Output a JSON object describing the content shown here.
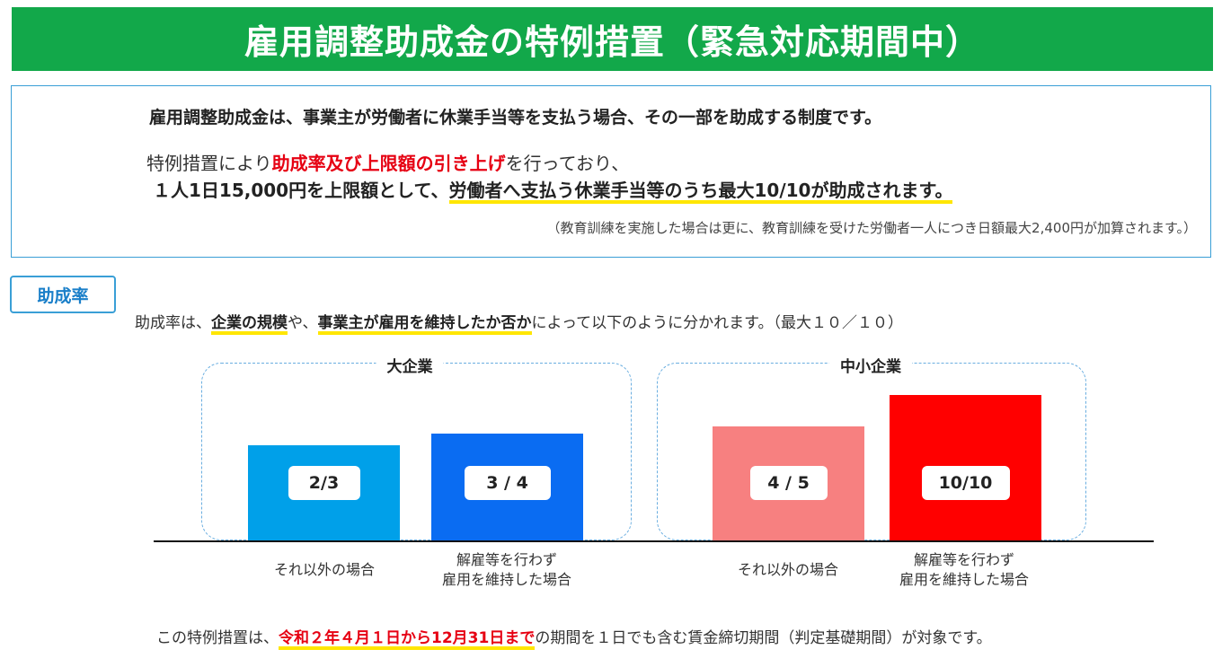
{
  "title": "雇用調整助成金の特例措置（緊急対応期間中）",
  "intro": {
    "line1": "雇用調整助成金は、事業主が労働者に休業手当等を支払う場合、その一部を助成する制度です。",
    "line2_pre": "特例措置により",
    "line2_red": "助成率及び上限額の引き上げ",
    "line2_post": "を行っており、",
    "line3_pre": "１人1日15,000円を上限額として、",
    "line3_hl": "労働者へ支払う休業手当等のうち最大10/10が助成されます。",
    "note": "（教育訓練を実施した場合は更に、教育訓練を受けた労働者一人につき日額最大2,400円が加算されます。）"
  },
  "rate": {
    "label": "助成率",
    "desc_pre": "助成率は、",
    "desc_hl1": "企業の規模",
    "desc_mid": "や、",
    "desc_hl2": "事業主が雇用を維持したか否か",
    "desc_post": "によって以下のように分かれます。（最大１０／１０）"
  },
  "chart_data": {
    "type": "bar",
    "groups": [
      {
        "name": "大企業",
        "bars": [
          {
            "category": "それ以外の場合",
            "label": "2/3",
            "value": 0.6667,
            "color": "#00a0e9"
          },
          {
            "category": "解雇等を行わず\n雇用を維持した場合",
            "label": "3 / 4",
            "value": 0.75,
            "color": "#0a6cf2"
          }
        ]
      },
      {
        "name": "中小企業",
        "bars": [
          {
            "category": "それ以外の場合",
            "label": "4 / 5",
            "value": 0.8,
            "color": "#f78080"
          },
          {
            "category": "解雇等を行わず\n雇用を維持した場合",
            "label": "10/10",
            "value": 1.0,
            "color": "#ff0000"
          }
        ]
      }
    ]
  },
  "cats": {
    "g1b1": "それ以外の場合",
    "g1b2_l1": "解雇等を行わず",
    "g1b2_l2": "雇用を維持した場合",
    "g2b1": "それ以外の場合",
    "g2b2_l1": "解雇等を行わず",
    "g2b2_l2": "雇用を維持した場合"
  },
  "footer": {
    "pre": "この特例措置は、",
    "red": "令和２年４月１日から12月31日まで",
    "post": "の期間を１日でも含む賃金締切期間（判定基礎期間）が対象です。"
  }
}
